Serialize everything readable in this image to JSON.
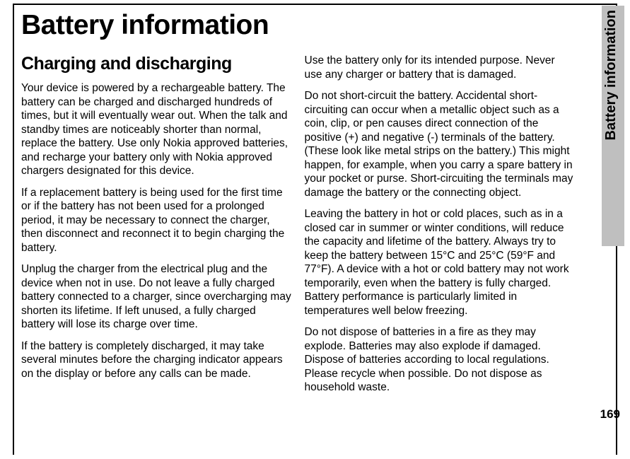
{
  "title": "Battery information",
  "section_heading": "Charging and discharging",
  "col1_paras": [
    "Your device is powered by a rechargeable battery. The battery can be charged and discharged hundreds of times, but it will eventually wear out. When the talk and standby times are noticeably shorter than normal, replace the battery. Use only Nokia approved batteries, and recharge your battery only with Nokia approved chargers designated for this device.",
    "If a replacement battery is being used for the first time or if the battery has not been used for a prolonged period, it may be necessary to connect the charger, then disconnect and reconnect it to begin charging the battery.",
    "Unplug the charger from the electrical plug and the device when not in use. Do not leave a fully charged battery connected to a charger, since overcharging may shorten its lifetime. If left unused, a fully charged battery will lose its charge over time.",
    "If the battery is completely discharged, it may take several minutes before the charging indicator appears on the display or before any calls can be made."
  ],
  "col2_paras": [
    "Use the battery only for its intended purpose. Never use any charger or battery that is damaged.",
    "Do not short-circuit the battery. Accidental short-circuiting can occur when a metallic object such as a coin, clip, or pen causes direct connection of the positive (+) and negative (-) terminals of the battery. (These look like metal strips on the battery.) This might happen, for example, when you carry a spare battery in your pocket or purse. Short-circuiting the terminals may damage the battery or the connecting object.",
    "Leaving the battery in hot or cold places, such as in a closed car in summer or winter conditions, will reduce the capacity and lifetime of the battery. Always try to keep the battery between 15°C and 25°C (59°F and 77°F). A device with a hot or cold battery may not work temporarily, even when the battery is fully charged. Battery performance is particularly limited in temperatures well below freezing.",
    "Do not dispose of batteries in a fire as they may explode. Batteries may also explode if damaged. Dispose of batteries according to local regulations. Please recycle when possible. Do not dispose as household waste."
  ],
  "side_label": "Battery information",
  "page_number": "169",
  "colors": {
    "gray_bar": "#bfbfbf",
    "text": "#000000",
    "bg": "#ffffff"
  }
}
